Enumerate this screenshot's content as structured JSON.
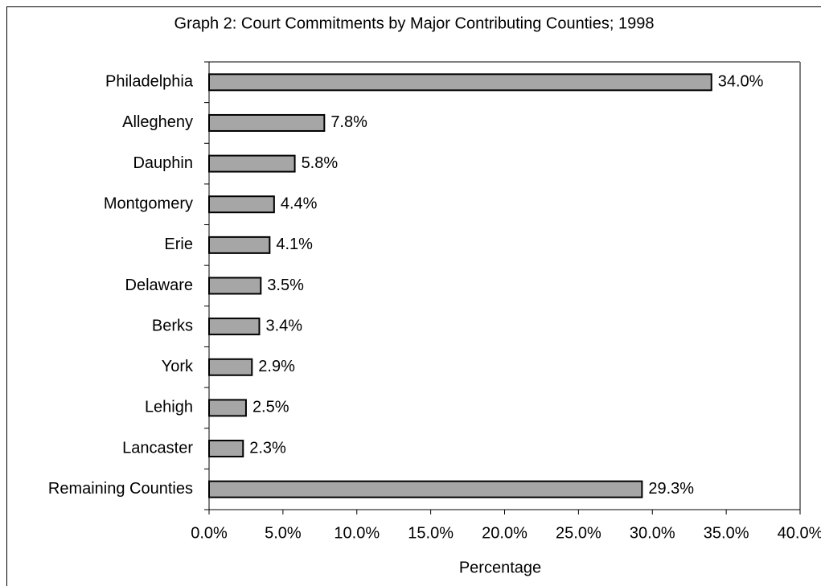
{
  "chart_data": {
    "type": "bar",
    "orientation": "horizontal",
    "title": "Graph 2: Court Commitments by Major Contributing Counties; 1998",
    "x_label": "Percentage",
    "categories": [
      "Philadelphia",
      "Allegheny",
      "Dauphin",
      "Montgomery",
      "Erie",
      "Delaware",
      "Berks",
      "York",
      "Lehigh",
      "Lancaster",
      "Remaining Counties"
    ],
    "values": [
      34.0,
      7.8,
      5.8,
      4.4,
      4.1,
      3.5,
      3.4,
      2.9,
      2.5,
      2.3,
      29.3
    ],
    "value_labels": [
      "34.0%",
      "7.8%",
      "5.8%",
      "4.4%",
      "4.1%",
      "3.5%",
      "3.4%",
      "2.9%",
      "2.5%",
      "2.3%",
      "29.3%"
    ],
    "color": "#a6a6a6",
    "xlim": [
      0,
      40
    ],
    "xticks": [
      {
        "value": 0,
        "label": "0.0%"
      },
      {
        "value": 5,
        "label": "5.0%"
      },
      {
        "value": 10,
        "label": "10.0%"
      },
      {
        "value": 15,
        "label": "15.0%"
      },
      {
        "value": 20,
        "label": "20.0%"
      },
      {
        "value": 25,
        "label": "25.0%"
      },
      {
        "value": 30,
        "label": "30.0%"
      },
      {
        "value": 35,
        "label": "35.0%"
      },
      {
        "value": 40,
        "label": "40.0%"
      }
    ],
    "grid": false
  }
}
